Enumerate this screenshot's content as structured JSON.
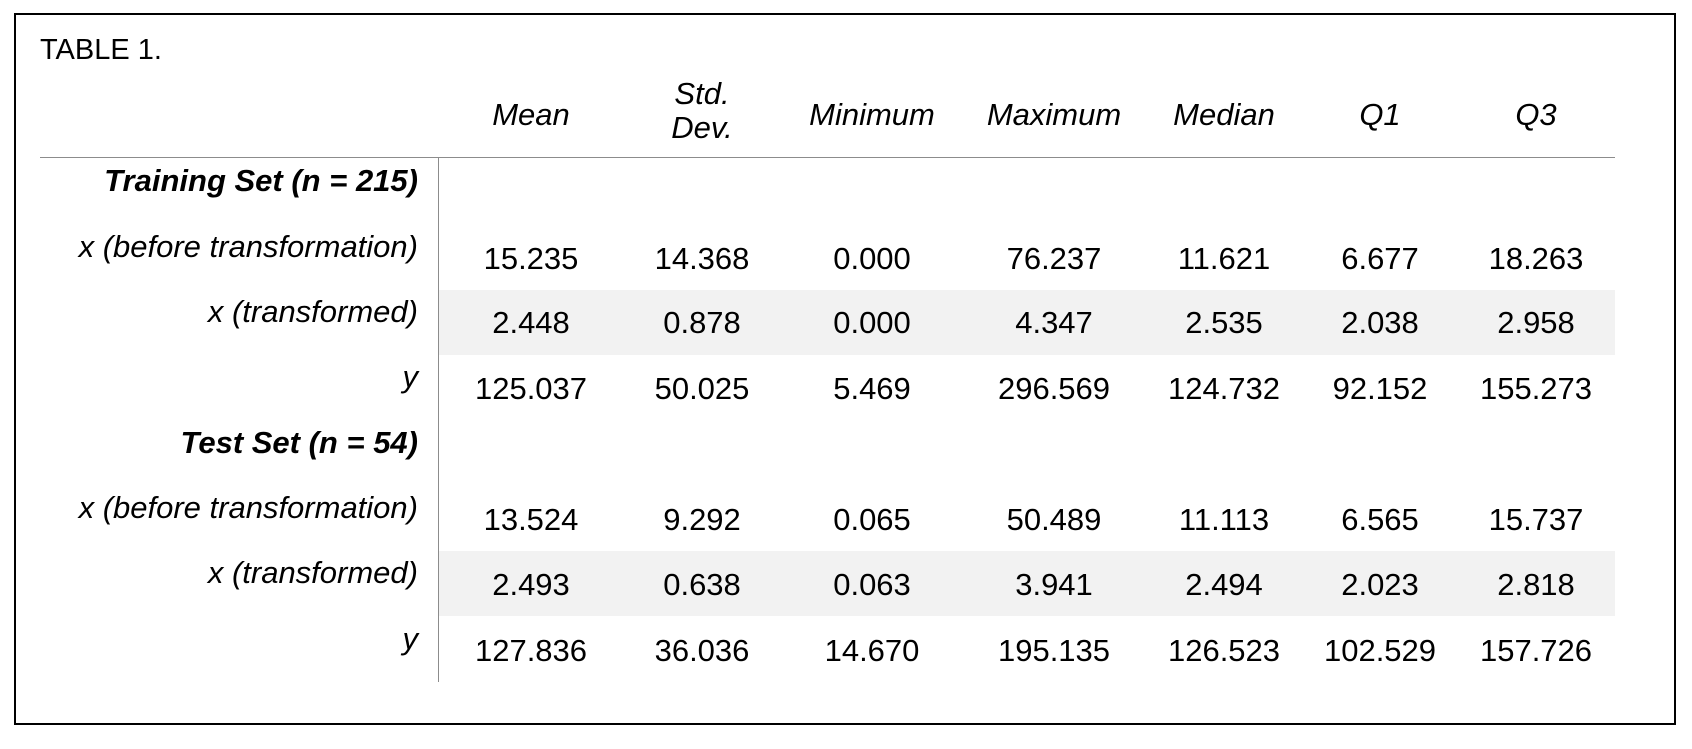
{
  "caption": "TABLE 1.",
  "columns": [
    "Mean",
    "Std.\nDev.",
    "Minimum",
    "Maximum",
    "Median",
    "Q1",
    "Q3"
  ],
  "sections": [
    {
      "title": "Training Set (n = 215)",
      "rows": [
        {
          "label": "x (before transformation)",
          "values": [
            "15.235",
            "14.368",
            "0.000",
            "76.237",
            "11.621",
            "6.677",
            "18.263"
          ]
        },
        {
          "label": "x (transformed)",
          "values": [
            "2.448",
            "0.878",
            "0.000",
            "4.347",
            "2.535",
            "2.038",
            "2.958"
          ]
        },
        {
          "label": "y",
          "values": [
            "125.037",
            "50.025",
            "5.469",
            "296.569",
            "124.732",
            "92.152",
            "155.273"
          ]
        }
      ]
    },
    {
      "title": "Test Set (n = 54)",
      "rows": [
        {
          "label": "x (before transformation)",
          "values": [
            "13.524",
            "9.292",
            "0.065",
            "50.489",
            "11.113",
            "6.565",
            "15.737"
          ]
        },
        {
          "label": "x (transformed)",
          "values": [
            "2.493",
            "0.638",
            "0.063",
            "3.941",
            "2.494",
            "2.023",
            "2.818"
          ]
        },
        {
          "label": "y",
          "values": [
            "127.836",
            "36.036",
            "14.670",
            "195.135",
            "126.523",
            "102.529",
            "157.726"
          ]
        }
      ]
    }
  ]
}
